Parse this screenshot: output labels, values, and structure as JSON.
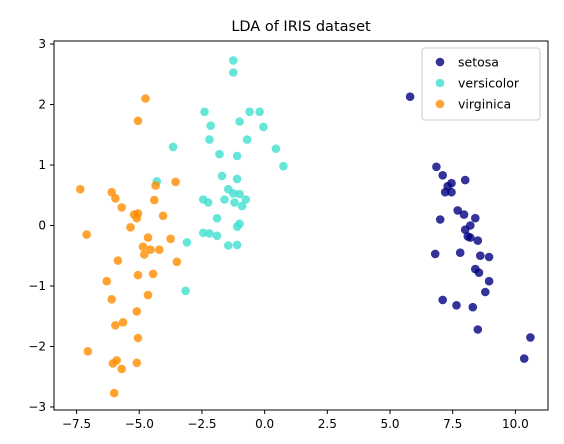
{
  "chart_data": {
    "type": "scatter",
    "title": "LDA of IRIS dataset",
    "xlabel": "",
    "ylabel": "",
    "xlim": [
      -8.4,
      11.3
    ],
    "ylim": [
      -3.05,
      3.05
    ],
    "xticks": [
      -7.5,
      -5.0,
      -2.5,
      0.0,
      2.5,
      5.0,
      7.5,
      10.0
    ],
    "xtick_labels": [
      "−7.5",
      "−5.0",
      "−2.5",
      "0.0",
      "2.5",
      "5.0",
      "7.5",
      "10.0"
    ],
    "yticks": [
      -3,
      -2,
      -1,
      0,
      1,
      2,
      3
    ],
    "ytick_labels": [
      "−3",
      "−2",
      "−1",
      "0",
      "1",
      "2",
      "3"
    ],
    "grid": false,
    "legend_position": "top-right",
    "series": [
      {
        "name": "setosa",
        "color": "#000080",
        "points": [
          [
            5.8,
            2.13
          ],
          [
            6.85,
            0.97
          ],
          [
            7.1,
            0.83
          ],
          [
            7.45,
            0.7
          ],
          [
            7.3,
            0.65
          ],
          [
            7.2,
            0.55
          ],
          [
            7.45,
            0.55
          ],
          [
            8.0,
            0.75
          ],
          [
            7.0,
            0.1
          ],
          [
            7.7,
            0.25
          ],
          [
            7.95,
            0.18
          ],
          [
            8.4,
            0.12
          ],
          [
            8.2,
            0.0
          ],
          [
            8.0,
            -0.07
          ],
          [
            8.1,
            -0.18
          ],
          [
            8.2,
            -0.2
          ],
          [
            8.5,
            -0.25
          ],
          [
            6.8,
            -0.47
          ],
          [
            7.8,
            -0.45
          ],
          [
            8.6,
            -0.5
          ],
          [
            8.95,
            -0.52
          ],
          [
            8.4,
            -0.72
          ],
          [
            8.55,
            -0.78
          ],
          [
            8.95,
            -0.92
          ],
          [
            8.8,
            -1.1
          ],
          [
            7.1,
            -1.23
          ],
          [
            7.65,
            -1.32
          ],
          [
            8.3,
            -1.35
          ],
          [
            8.5,
            -1.72
          ],
          [
            10.6,
            -1.85
          ],
          [
            10.35,
            -2.2
          ]
        ]
      },
      {
        "name": "versicolor",
        "color": "#40E0D0",
        "points": [
          [
            -1.25,
            2.73
          ],
          [
            -1.25,
            2.53
          ],
          [
            -2.4,
            1.88
          ],
          [
            -0.6,
            1.88
          ],
          [
            -0.2,
            1.88
          ],
          [
            -2.15,
            1.65
          ],
          [
            -1.0,
            1.72
          ],
          [
            -0.05,
            1.63
          ],
          [
            -2.2,
            1.42
          ],
          [
            -0.7,
            1.42
          ],
          [
            -3.65,
            1.3
          ],
          [
            0.45,
            1.27
          ],
          [
            -1.8,
            1.18
          ],
          [
            -1.1,
            1.15
          ],
          [
            0.75,
            0.98
          ],
          [
            -1.7,
            0.82
          ],
          [
            -4.3,
            0.73
          ],
          [
            -1.1,
            0.77
          ],
          [
            -1.45,
            0.6
          ],
          [
            -1.25,
            0.53
          ],
          [
            -1.0,
            0.52
          ],
          [
            -2.45,
            0.43
          ],
          [
            -1.6,
            0.43
          ],
          [
            -0.75,
            0.43
          ],
          [
            -2.25,
            0.38
          ],
          [
            -1.2,
            0.38
          ],
          [
            -0.9,
            0.32
          ],
          [
            -1.9,
            0.12
          ],
          [
            -1.0,
            0.03
          ],
          [
            -1.1,
            -0.02
          ],
          [
            -2.45,
            -0.12
          ],
          [
            -2.2,
            -0.13
          ],
          [
            -1.9,
            -0.17
          ],
          [
            -3.1,
            -0.28
          ],
          [
            -1.45,
            -0.33
          ],
          [
            -1.1,
            -0.32
          ],
          [
            -3.15,
            -1.08
          ]
        ]
      },
      {
        "name": "virginica",
        "color": "#FF8C00",
        "points": [
          [
            -4.75,
            2.1
          ],
          [
            -5.05,
            1.73
          ],
          [
            -3.55,
            0.72
          ],
          [
            -4.35,
            0.66
          ],
          [
            -7.35,
            0.6
          ],
          [
            -6.1,
            0.55
          ],
          [
            -5.95,
            0.45
          ],
          [
            -4.4,
            0.42
          ],
          [
            -5.7,
            0.3
          ],
          [
            -5.2,
            0.18
          ],
          [
            -5.05,
            0.2
          ],
          [
            -5.1,
            0.12
          ],
          [
            -4.05,
            0.16
          ],
          [
            -5.35,
            -0.03
          ],
          [
            -7.1,
            -0.15
          ],
          [
            -4.65,
            -0.2
          ],
          [
            -4.85,
            -0.35
          ],
          [
            -4.55,
            -0.4
          ],
          [
            -4.2,
            -0.4
          ],
          [
            -4.8,
            -0.48
          ],
          [
            -3.75,
            -0.22
          ],
          [
            -5.85,
            -0.58
          ],
          [
            -3.5,
            -0.6
          ],
          [
            -5.05,
            -0.82
          ],
          [
            -4.45,
            -0.8
          ],
          [
            -6.3,
            -0.92
          ],
          [
            -4.65,
            -1.15
          ],
          [
            -6.1,
            -1.22
          ],
          [
            -5.1,
            -1.42
          ],
          [
            -5.65,
            -1.6
          ],
          [
            -5.95,
            -1.65
          ],
          [
            -5.05,
            -1.86
          ],
          [
            -7.05,
            -2.08
          ],
          [
            -5.9,
            -2.23
          ],
          [
            -6.05,
            -2.28
          ],
          [
            -5.1,
            -2.27
          ],
          [
            -5.7,
            -2.37
          ],
          [
            -6.0,
            -2.77
          ]
        ]
      }
    ]
  }
}
